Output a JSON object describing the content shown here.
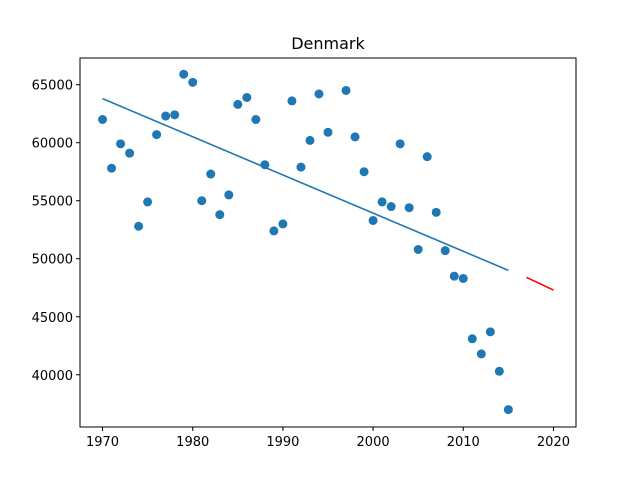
{
  "chart_data": {
    "type": "scatter",
    "title": "Denmark",
    "xlabel": "",
    "ylabel": "",
    "xlim": [
      1967.5,
      2022.5
    ],
    "ylim": [
      35500,
      67300
    ],
    "grid": false,
    "x_ticks": [
      1970,
      1980,
      1990,
      2000,
      2010,
      2020
    ],
    "x_tick_labels": [
      "1970",
      "1980",
      "1990",
      "2000",
      "2010",
      "2020"
    ],
    "y_ticks": [
      40000,
      45000,
      50000,
      55000,
      60000,
      65000
    ],
    "y_tick_labels": [
      "40000",
      "45000",
      "50000",
      "55000",
      "60000",
      "65000"
    ],
    "series": [
      {
        "kind": "scatter",
        "color": "#1f77b4",
        "points": [
          [
            1970,
            62000
          ],
          [
            1971,
            57800
          ],
          [
            1972,
            59900
          ],
          [
            1973,
            59100
          ],
          [
            1974,
            52800
          ],
          [
            1975,
            54900
          ],
          [
            1976,
            60700
          ],
          [
            1977,
            62300
          ],
          [
            1978,
            62400
          ],
          [
            1979,
            65900
          ],
          [
            1980,
            65200
          ],
          [
            1981,
            55000
          ],
          [
            1982,
            57300
          ],
          [
            1983,
            53800
          ],
          [
            1984,
            55500
          ],
          [
            1985,
            63300
          ],
          [
            1986,
            63900
          ],
          [
            1987,
            62000
          ],
          [
            1988,
            58100
          ],
          [
            1989,
            52400
          ],
          [
            1990,
            53000
          ],
          [
            1991,
            63600
          ],
          [
            1992,
            57900
          ],
          [
            1993,
            60200
          ],
          [
            1994,
            64200
          ],
          [
            1995,
            60900
          ],
          [
            1997,
            64500
          ],
          [
            1998,
            60500
          ],
          [
            1999,
            57500
          ],
          [
            2000,
            53300
          ],
          [
            2001,
            54900
          ],
          [
            2002,
            54500
          ],
          [
            2003,
            59900
          ],
          [
            2004,
            54400
          ],
          [
            2005,
            50800
          ],
          [
            2006,
            58800
          ],
          [
            2007,
            54000
          ],
          [
            2008,
            50700
          ],
          [
            2009,
            48500
          ],
          [
            2010,
            48300
          ],
          [
            2011,
            43100
          ],
          [
            2012,
            41800
          ],
          [
            2013,
            43700
          ],
          [
            2014,
            40300
          ],
          [
            2015,
            37000
          ]
        ]
      },
      {
        "kind": "line",
        "color": "#1f77b4",
        "points": [
          [
            1970,
            63800
          ],
          [
            2015,
            49000
          ]
        ]
      },
      {
        "kind": "line",
        "color": "#ff0000",
        "points": [
          [
            2017,
            48400
          ],
          [
            2020,
            47300
          ]
        ]
      }
    ]
  }
}
